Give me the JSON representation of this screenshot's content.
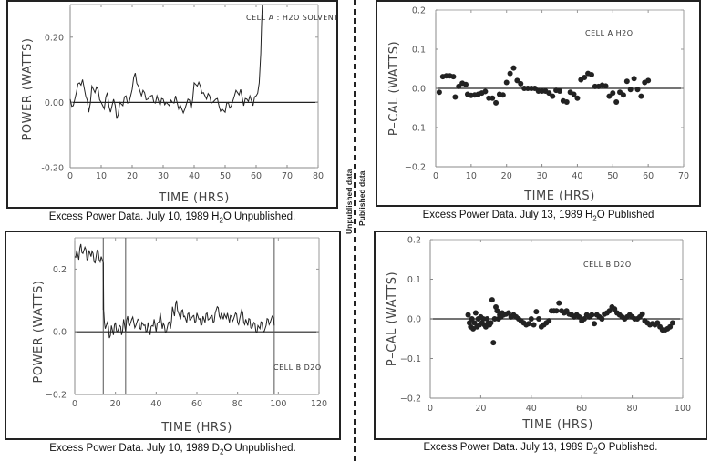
{
  "divider": {
    "left_label": "Unpublished data",
    "right_label": "Published data"
  },
  "chart_data": [
    {
      "id": "tl",
      "type": "line",
      "annotation": "CELL A  :   H2O SOLVENT",
      "xlabel": "TIME  (HRS)",
      "ylabel": "POWER  (WATTS)",
      "xlim": [
        0,
        80
      ],
      "ylim": [
        -0.2,
        0.3
      ],
      "xticks": [
        0,
        10,
        20,
        30,
        40,
        50,
        60,
        70,
        80
      ],
      "xtick_labels": [
        "0",
        "10",
        "20",
        "30",
        "40",
        "50",
        "60",
        "70",
        "80"
      ],
      "yticks": [
        0.2,
        0.0,
        -0.2
      ],
      "ytick_labels": [
        "0.20",
        "0.00",
        "-0.20"
      ],
      "caption_parts": [
        "Excess Power Data. July 10, 1989  H",
        "2",
        "O Unpublished."
      ],
      "series": [
        {
          "name": "Cell A H2O",
          "x": [
            0,
            1,
            2,
            3,
            4,
            5,
            6,
            7,
            8,
            9,
            10,
            11,
            12,
            13,
            14,
            15,
            16,
            17,
            18,
            19,
            20,
            21,
            22,
            23,
            24,
            25,
            26,
            27,
            28,
            29,
            30,
            31,
            32,
            33,
            34,
            35,
            36,
            37,
            38,
            39,
            40,
            41,
            42,
            43,
            44,
            45,
            46,
            47,
            48,
            49,
            50,
            51,
            52,
            53,
            54,
            55,
            56,
            57,
            58,
            59,
            60,
            61,
            61.5,
            62
          ],
          "y": [
            0.01,
            -0.01,
            0.03,
            0.06,
            0.07,
            0.02,
            -0.03,
            0.05,
            0.03,
            0.04,
            0.0,
            -0.02,
            0.03,
            -0.03,
            0.01,
            -0.05,
            0.0,
            -0.01,
            0.02,
            0.0,
            0.04,
            0.09,
            0.05,
            0.02,
            0.03,
            0.01,
            0.02,
            0.0,
            0.02,
            -0.01,
            0.01,
            0.0,
            -0.01,
            0.0,
            0.02,
            -0.02,
            -0.02,
            -0.02,
            0.01,
            -0.02,
            0.06,
            0.05,
            0.05,
            0.03,
            0.01,
            0.02,
            0.0,
            0.01,
            -0.01,
            -0.02,
            -0.03,
            0.0,
            -0.01,
            0.02,
            0.03,
            0.04,
            -0.01,
            0.01,
            0.02,
            -0.01,
            0.02,
            0.06,
            0.15,
            0.3
          ]
        }
      ]
    },
    {
      "id": "tr",
      "type": "scatter",
      "annotation": "CELL A     H2O",
      "xlabel": "TIME  (HRS)",
      "ylabel": "P–CAL (WATTS)",
      "xlim": [
        0,
        70
      ],
      "ylim": [
        -0.2,
        0.2
      ],
      "xticks": [
        0,
        10,
        20,
        30,
        40,
        50,
        60,
        70
      ],
      "xtick_labels": [
        "0",
        "10",
        "20",
        "30",
        "40",
        "50",
        "60",
        "70"
      ],
      "yticks": [
        0.2,
        0.1,
        0.0,
        -0.1,
        -0.2
      ],
      "ytick_labels": [
        "0.2",
        "0.1",
        "0.0",
        "−0.1",
        "−0.2"
      ],
      "caption_parts": [
        "Excess Power Data. July 13, 1989  H",
        "2",
        "O Published"
      ],
      "series": [
        {
          "name": "Cell A H2O",
          "x": [
            1,
            2,
            3,
            4,
            5,
            5.5,
            6.5,
            7.5,
            8.5,
            9,
            10,
            11,
            12,
            13,
            14,
            15,
            16,
            17,
            18,
            19,
            20,
            21,
            22,
            23,
            24,
            25,
            26,
            27,
            28,
            29,
            30,
            31,
            32,
            33,
            34,
            35,
            36,
            37,
            38,
            39,
            40,
            41,
            42,
            43,
            44,
            45,
            46,
            47,
            48,
            49,
            50,
            51,
            52,
            53,
            54,
            55,
            56,
            57,
            58,
            59,
            60
          ],
          "y": [
            -0.01,
            0.03,
            0.032,
            0.032,
            0.03,
            -0.022,
            0.005,
            0.013,
            0.01,
            -0.015,
            -0.018,
            -0.017,
            -0.015,
            -0.012,
            -0.008,
            -0.025,
            -0.025,
            -0.037,
            -0.015,
            -0.017,
            0.015,
            0.038,
            0.052,
            0.02,
            0.012,
            0.0,
            0.0,
            0.0,
            0.0,
            -0.007,
            -0.007,
            -0.007,
            -0.012,
            -0.02,
            -0.005,
            -0.007,
            -0.032,
            -0.035,
            -0.01,
            -0.015,
            -0.025,
            0.022,
            0.028,
            0.038,
            0.035,
            0.005,
            0.005,
            0.008,
            0.006,
            -0.02,
            -0.012,
            -0.035,
            -0.01,
            -0.017,
            0.018,
            -0.003,
            0.025,
            -0.003,
            -0.02,
            0.015,
            0.02
          ]
        }
      ]
    },
    {
      "id": "bl",
      "type": "line",
      "annotation": "CELL B D2O",
      "xlabel": "TIME (HRS)",
      "ylabel": "POWER  (WATTS)",
      "xlim": [
        0,
        120
      ],
      "ylim": [
        -0.2,
        0.3
      ],
      "xticks": [
        0,
        20,
        40,
        60,
        80,
        100,
        120
      ],
      "xtick_labels": [
        "0",
        "20",
        "40",
        "60",
        "80",
        "100",
        "120"
      ],
      "yticks": [
        0.2,
        0.0,
        -0.2
      ],
      "ytick_labels": [
        "0.2",
        "0.0",
        "−0.2"
      ],
      "vlines": [
        14,
        25,
        98
      ],
      "caption_parts": [
        "Excess Power Data. July 10, 1989  D",
        "2",
        "O Unpublished."
      ],
      "series": [
        {
          "name": "Cell B D2O",
          "x": [
            0,
            1,
            2,
            3,
            4,
            5,
            6,
            7,
            8,
            9,
            10,
            11,
            12,
            13,
            14,
            14.2,
            15,
            16,
            17,
            18,
            19,
            20,
            21,
            22,
            23,
            24,
            25,
            26,
            27,
            28,
            29,
            30,
            31,
            32,
            33,
            34,
            35,
            36,
            37,
            38,
            39,
            40,
            41,
            42,
            43,
            44,
            45,
            46,
            47,
            48,
            49,
            50,
            51,
            52,
            53,
            54,
            55,
            56,
            57,
            58,
            59,
            60,
            61,
            62,
            63,
            64,
            65,
            66,
            67,
            68,
            69,
            70,
            71,
            72,
            73,
            74,
            75,
            76,
            77,
            78,
            79,
            80,
            81,
            82,
            83,
            84,
            85,
            86,
            87,
            88,
            89,
            90,
            91,
            92,
            93,
            94,
            95,
            96,
            97,
            98
          ],
          "y": [
            0.24,
            0.26,
            0.23,
            0.28,
            0.25,
            0.27,
            0.23,
            0.26,
            0.24,
            0.25,
            0.22,
            0.26,
            0.23,
            0.24,
            0.22,
            0.07,
            0.01,
            0.03,
            -0.02,
            0.02,
            -0.01,
            0.03,
            0.0,
            0.02,
            -0.01,
            0.04,
            0.0,
            0.05,
            0.02,
            0.04,
            0.03,
            0.02,
            0.04,
            0.01,
            0.03,
            0.02,
            0.0,
            0.03,
            -0.01,
            0.02,
            0.04,
            0.0,
            0.03,
            0.06,
            0.01,
            0.02,
            0.0,
            0.03,
            0.01,
            0.08,
            0.05,
            0.1,
            0.06,
            0.04,
            0.07,
            0.05,
            0.03,
            0.06,
            0.04,
            0.05,
            0.03,
            0.06,
            0.04,
            0.02,
            0.05,
            0.03,
            0.06,
            0.04,
            0.05,
            0.03,
            0.06,
            0.08,
            0.05,
            0.06,
            0.04,
            0.05,
            0.06,
            0.03,
            0.05,
            0.04,
            0.06,
            0.03,
            0.04,
            0.07,
            0.03,
            0.04,
            0.02,
            0.04,
            0.01,
            0.03,
            0.0,
            0.02,
            0.01,
            0.03,
            0.0,
            0.02,
            0.04,
            0.03,
            0.05,
            0.02
          ]
        }
      ]
    },
    {
      "id": "br",
      "type": "scatter",
      "annotation": "CELL B     D2O",
      "xlabel": "TIME  (HRS)",
      "ylabel": "P–CAL (WATTS)",
      "xlim": [
        0,
        100
      ],
      "ylim": [
        -0.2,
        0.2
      ],
      "xticks": [
        0,
        20,
        40,
        60,
        80,
        100
      ],
      "xtick_labels": [
        "0",
        "20",
        "40",
        "60",
        "80",
        "100"
      ],
      "yticks": [
        0.2,
        0.1,
        0.0,
        -0.1,
        -0.2
      ],
      "ytick_labels": [
        "0.2",
        "0.1",
        "0.0",
        "−0.1",
        "−0.2"
      ],
      "caption_parts": [
        "Excess Power Data. July 13, 1989  D",
        "2",
        "O Published."
      ],
      "series": [
        {
          "name": "Cell B D2O",
          "x": [
            15,
            15.5,
            16,
            16.5,
            17,
            17.5,
            18,
            18.5,
            19,
            19.5,
            20,
            20.5,
            21,
            21.5,
            22,
            22.5,
            23,
            23.5,
            24,
            24.5,
            25,
            25.5,
            26,
            26.5,
            27,
            27.5,
            28,
            28.5,
            29,
            30,
            31,
            32,
            33,
            34,
            35,
            36,
            37,
            38,
            39,
            40,
            41,
            42,
            43,
            44,
            45,
            46,
            47,
            48,
            49,
            50,
            51,
            52,
            53,
            54,
            55,
            56,
            57,
            58,
            59,
            60,
            61,
            62,
            63,
            64,
            65,
            66,
            67,
            68,
            69,
            70,
            71,
            72,
            73,
            74,
            75,
            76,
            77,
            78,
            79,
            80,
            81,
            82,
            83,
            84,
            85,
            86,
            87,
            88,
            89,
            90,
            91,
            92,
            93,
            94,
            95,
            96
          ],
          "y": [
            0.01,
            -0.01,
            -0.02,
            0.0,
            -0.025,
            -0.01,
            0.015,
            -0.02,
            0.0,
            -0.015,
            0.005,
            -0.01,
            0.0,
            -0.015,
            -0.02,
            0.0,
            -0.01,
            -0.015,
            -0.01,
            0.048,
            -0.06,
            0.0,
            0.03,
            0.02,
            0.0,
            0.01,
            0.005,
            0.015,
            0.01,
            0.012,
            0.015,
            0.005,
            0.01,
            0.005,
            0.0,
            -0.005,
            -0.01,
            -0.015,
            -0.012,
            0.0,
            -0.015,
            0.018,
            0.0,
            -0.02,
            -0.015,
            -0.01,
            -0.005,
            0.02,
            0.02,
            0.02,
            0.04,
            0.02,
            0.015,
            0.02,
            0.012,
            0.01,
            0.005,
            0.01,
            0.005,
            -0.005,
            0.0,
            0.01,
            0.005,
            0.01,
            -0.012,
            0.01,
            0.005,
            0.0,
            0.012,
            0.015,
            0.02,
            0.03,
            0.025,
            0.015,
            0.01,
            0.005,
            0.0,
            0.005,
            0.01,
            0.005,
            0.0,
            0.0,
            0.005,
            0.012,
            -0.005,
            -0.01,
            -0.015,
            -0.012,
            -0.015,
            -0.01,
            -0.02,
            -0.028,
            -0.028,
            -0.025,
            -0.02,
            -0.01
          ]
        }
      ]
    }
  ]
}
